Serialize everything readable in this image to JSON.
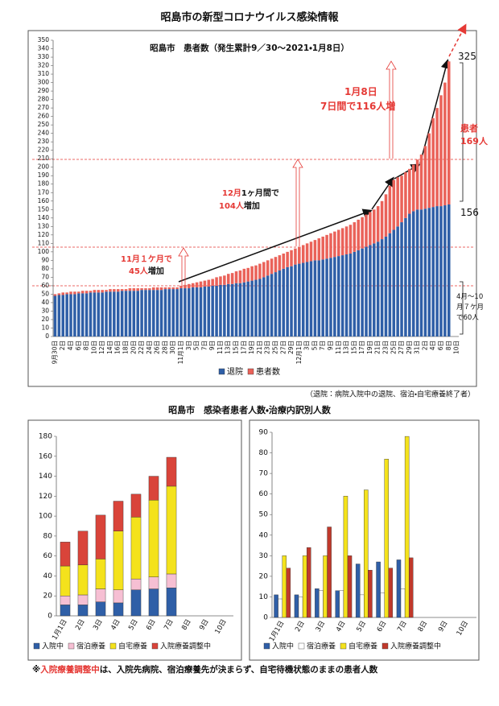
{
  "title": "昭島市の新型コロナウイルス感染情報",
  "section_title": "昭島市　感染者患者人数・治療内訳別人数",
  "footnote": [
    {
      "text": "※",
      "color": "#111111"
    },
    {
      "text": "入院療養調整中",
      "color": "#e53935"
    },
    {
      "text": "は、入院先病院、宿泊療養先が決まらず、自宅待機状態のままの患者人数",
      "color": "#111111"
    }
  ],
  "chart_data": [
    {
      "type": "bar",
      "stacked": true,
      "subtitle": "昭島市　患者数（発生累計9／30〜2021・1月8日）",
      "categories": [
        "9月30日",
        null,
        "2日",
        null,
        "4日",
        null,
        "6日",
        null,
        "8日",
        null,
        "10日",
        null,
        "12日",
        null,
        "14日",
        null,
        "16日",
        null,
        "18日",
        null,
        "20日",
        null,
        "22日",
        null,
        "24日",
        null,
        "26日",
        null,
        "28日",
        null,
        "30日",
        null,
        "11月1日",
        null,
        "3日",
        null,
        "5日",
        null,
        "7日",
        null,
        "9日",
        null,
        "11日",
        null,
        "13日",
        null,
        "15日",
        null,
        "17日",
        null,
        "19日",
        null,
        "21日",
        null,
        "23日",
        null,
        "25日",
        null,
        "27日",
        null,
        "29日",
        null,
        "12月1日",
        null,
        "3日",
        null,
        "5日",
        null,
        "7日",
        null,
        "9日",
        null,
        "11日",
        null,
        "13日",
        null,
        "15日",
        null,
        "17日",
        null,
        "19日",
        null,
        "21日",
        null,
        "23日",
        null,
        "25日",
        null,
        "27日",
        null,
        "29日",
        null,
        "31日",
        null,
        "2日",
        null,
        "4日",
        null,
        "6日",
        null,
        "8日",
        null,
        "10日"
      ],
      "series": [
        {
          "name": "退院",
          "color": "#2f5fa7",
          "values": [
            48,
            49,
            49,
            50,
            50,
            50,
            51,
            51,
            51,
            52,
            52,
            52,
            52,
            53,
            53,
            53,
            53,
            54,
            54,
            54,
            54,
            54,
            55,
            55,
            55,
            55,
            55,
            55,
            56,
            56,
            56,
            56,
            57,
            57,
            57,
            58,
            58,
            58,
            59,
            59,
            60,
            60,
            61,
            61,
            62,
            62,
            63,
            63,
            64,
            65,
            66,
            67,
            68,
            70,
            72,
            74,
            76,
            78,
            80,
            82,
            83,
            85,
            86,
            87,
            88,
            89,
            90,
            90,
            91,
            92,
            93,
            94,
            95,
            96,
            97,
            98,
            100,
            102,
            104,
            106,
            108,
            110,
            112,
            115,
            118,
            122,
            126,
            130,
            135,
            140,
            145,
            148,
            150,
            150,
            151,
            152,
            153,
            154,
            154,
            155,
            156,
            null,
            null
          ]
        },
        {
          "name": "患者数",
          "color": "#ea6259",
          "values": [
            2,
            2,
            3,
            2,
            3,
            3,
            2,
            3,
            3,
            2,
            3,
            3,
            3,
            2,
            3,
            3,
            3,
            2,
            2,
            3,
            3,
            3,
            2,
            2,
            2,
            3,
            3,
            3,
            2,
            2,
            2,
            2,
            3,
            4,
            5,
            5,
            6,
            7,
            7,
            8,
            8,
            10,
            10,
            11,
            12,
            13,
            14,
            15,
            16,
            16,
            17,
            17,
            18,
            18,
            18,
            18,
            18,
            18,
            18,
            18,
            19,
            19,
            20,
            21,
            22,
            23,
            24,
            26,
            27,
            28,
            29,
            30,
            31,
            32,
            33,
            34,
            35,
            36,
            37,
            38,
            39,
            40,
            42,
            45,
            50,
            56,
            59,
            58,
            55,
            54,
            53,
            55,
            59,
            65,
            74,
            88,
            105,
            116,
            131,
            145,
            169,
            null,
            null
          ]
        }
      ],
      "ylim": [
        0,
        350
      ],
      "yticks": [
        0,
        10,
        20,
        30,
        40,
        50,
        60,
        70,
        80,
        90,
        100,
        110,
        120,
        130,
        140,
        150,
        160,
        170,
        180,
        190,
        200,
        210,
        220,
        230,
        240,
        250,
        260,
        270,
        280,
        290,
        300,
        310,
        320,
        330,
        340,
        350
      ],
      "annotations": [
        [
          {
            "text": "11月１ケ月で",
            "color": "#e53935"
          }
        ],
        [
          {
            "text": "45人",
            "color": "#e53935"
          },
          {
            "text": "増加",
            "color": "#111111"
          }
        ],
        [
          {
            "text": "12月",
            "color": "#e53935"
          },
          {
            "text": "1ヶ月間で",
            "color": "#111111"
          }
        ],
        [
          {
            "text": "104人",
            "color": "#e53935"
          },
          {
            "text": "増加",
            "color": "#111111"
          }
        ],
        [
          {
            "text": "1月8日",
            "color": "#e53935"
          }
        ],
        [
          {
            "text": "7日間で116人増",
            "color": "#e53935"
          }
        ],
        [
          {
            "text": "325",
            "color": "#111111"
          }
        ],
        [
          {
            "text": "患者",
            "color": "#e53935"
          }
        ],
        [
          {
            "text": "169人",
            "color": "#e53935"
          }
        ],
        [
          {
            "text": "156",
            "color": "#111111"
          }
        ],
        [
          {
            "text": "4月〜10",
            "color": "#111111"
          }
        ],
        [
          {
            "text": "月７ケ月",
            "color": "#111111"
          }
        ],
        [
          {
            "text": "で60人",
            "color": "#111111"
          }
        ]
      ],
      "note": "（退院：病院入院中の退院、宿泊・自宅療養終了者）"
    },
    {
      "type": "bar",
      "stacked": true,
      "categories": [
        "1月1日",
        "2日",
        "3日",
        "4日",
        "5日",
        "6日",
        "7日",
        "8日",
        "9日",
        "10日"
      ],
      "series": [
        {
          "name": "入院中",
          "color": "#2f5fa7",
          "values": [
            11,
            11,
            14,
            13,
            26,
            27,
            28,
            null,
            null,
            null
          ]
        },
        {
          "name": "宿泊療養",
          "color": "#f6bfd3",
          "values": [
            9,
            10,
            13,
            13,
            11,
            12,
            14,
            null,
            null,
            null
          ]
        },
        {
          "name": "自宅療養",
          "color": "#f4e21c",
          "values": [
            30,
            30,
            30,
            59,
            62,
            77,
            88,
            null,
            null,
            null
          ]
        },
        {
          "name": "入院療養調整中",
          "color": "#d9443a",
          "values": [
            24,
            34,
            44,
            30,
            23,
            24,
            29,
            null,
            null,
            null
          ]
        }
      ],
      "ylim": [
        0,
        180
      ],
      "yticks": [
        0,
        20,
        40,
        60,
        80,
        100,
        120,
        140,
        160,
        180
      ]
    },
    {
      "type": "bar",
      "stacked": false,
      "categories": [
        "1月1日",
        "2日",
        "3日",
        "4日",
        "5日",
        "6日",
        "7日",
        "8日",
        "9日",
        "10日"
      ],
      "series": [
        {
          "name": "入院中",
          "color": "#2f5fa7",
          "values": [
            11,
            11,
            14,
            13,
            26,
            27,
            28,
            null,
            null,
            null
          ]
        },
        {
          "name": "宿泊療養",
          "color": "#ffffff",
          "values": [
            9,
            10,
            13,
            13,
            11,
            12,
            14,
            null,
            null,
            null
          ]
        },
        {
          "name": "自宅療養",
          "color": "#f4e21c",
          "values": [
            30,
            30,
            30,
            59,
            62,
            77,
            88,
            null,
            null,
            null
          ]
        },
        {
          "name": "入院療養調整中",
          "color": "#c0392b",
          "values": [
            24,
            34,
            44,
            30,
            23,
            24,
            29,
            null,
            null,
            null
          ]
        }
      ],
      "ylim": [
        0,
        90
      ],
      "yticks": [
        0,
        10,
        20,
        30,
        40,
        50,
        60,
        70,
        80,
        90
      ]
    }
  ]
}
